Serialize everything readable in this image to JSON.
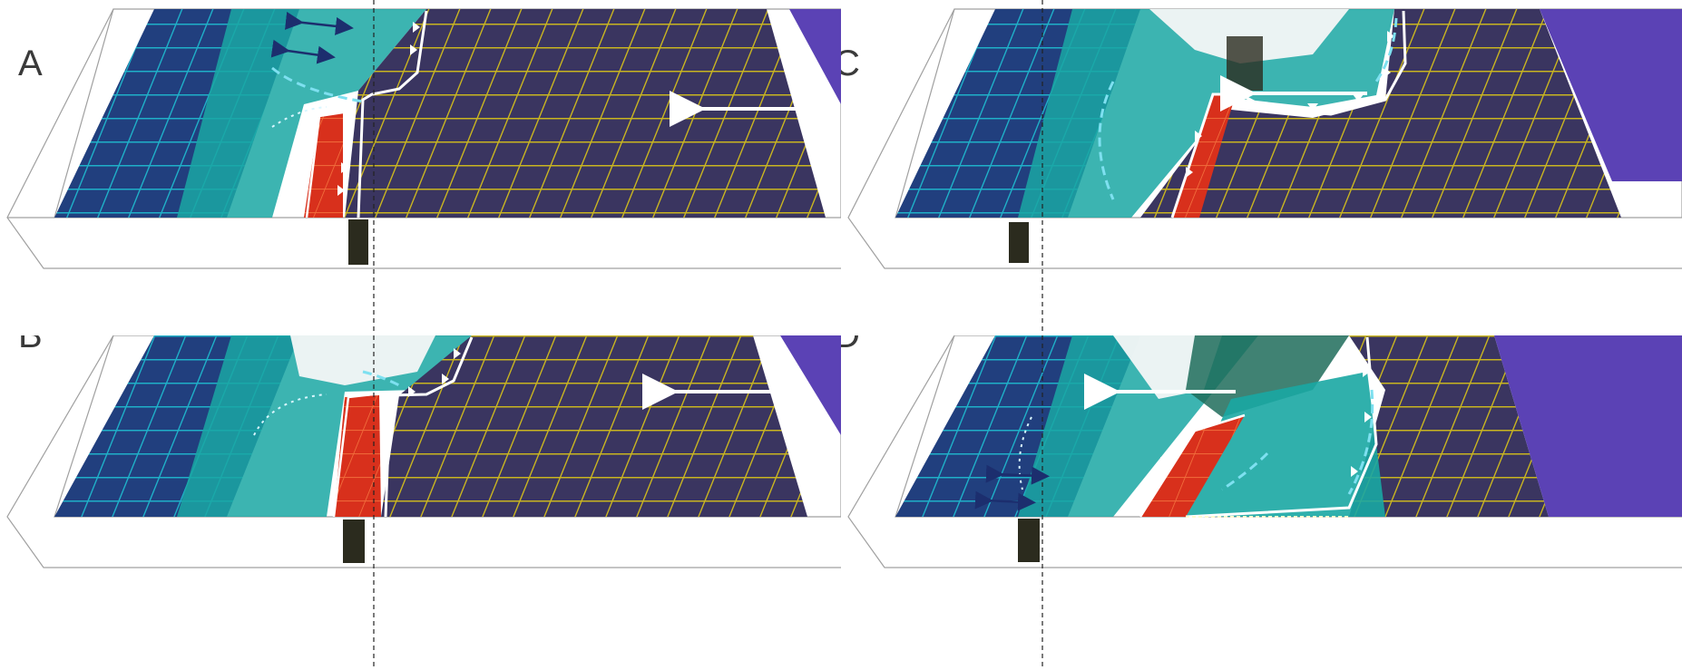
{
  "panels": [
    {
      "label": "A"
    },
    {
      "label": "B"
    },
    {
      "label": "C"
    },
    {
      "label": "D"
    }
  ],
  "colors": {
    "deep_grid_blue": "#1e3a7a",
    "grid_cyan": "#1fb6c9",
    "teal_layer": "#1aa7a3",
    "red_block": "#d62a18",
    "yellow_grid": "#c8b81c",
    "purple_layer": "#5b42b5",
    "white_overlay": "#f4f7f7",
    "outline": "#9a9a9a"
  },
  "icons": [
    "direction-arrow-icon",
    "pair-arrows-icon",
    "sawtooth-thrust-icon",
    "dashed-reference-line"
  ]
}
